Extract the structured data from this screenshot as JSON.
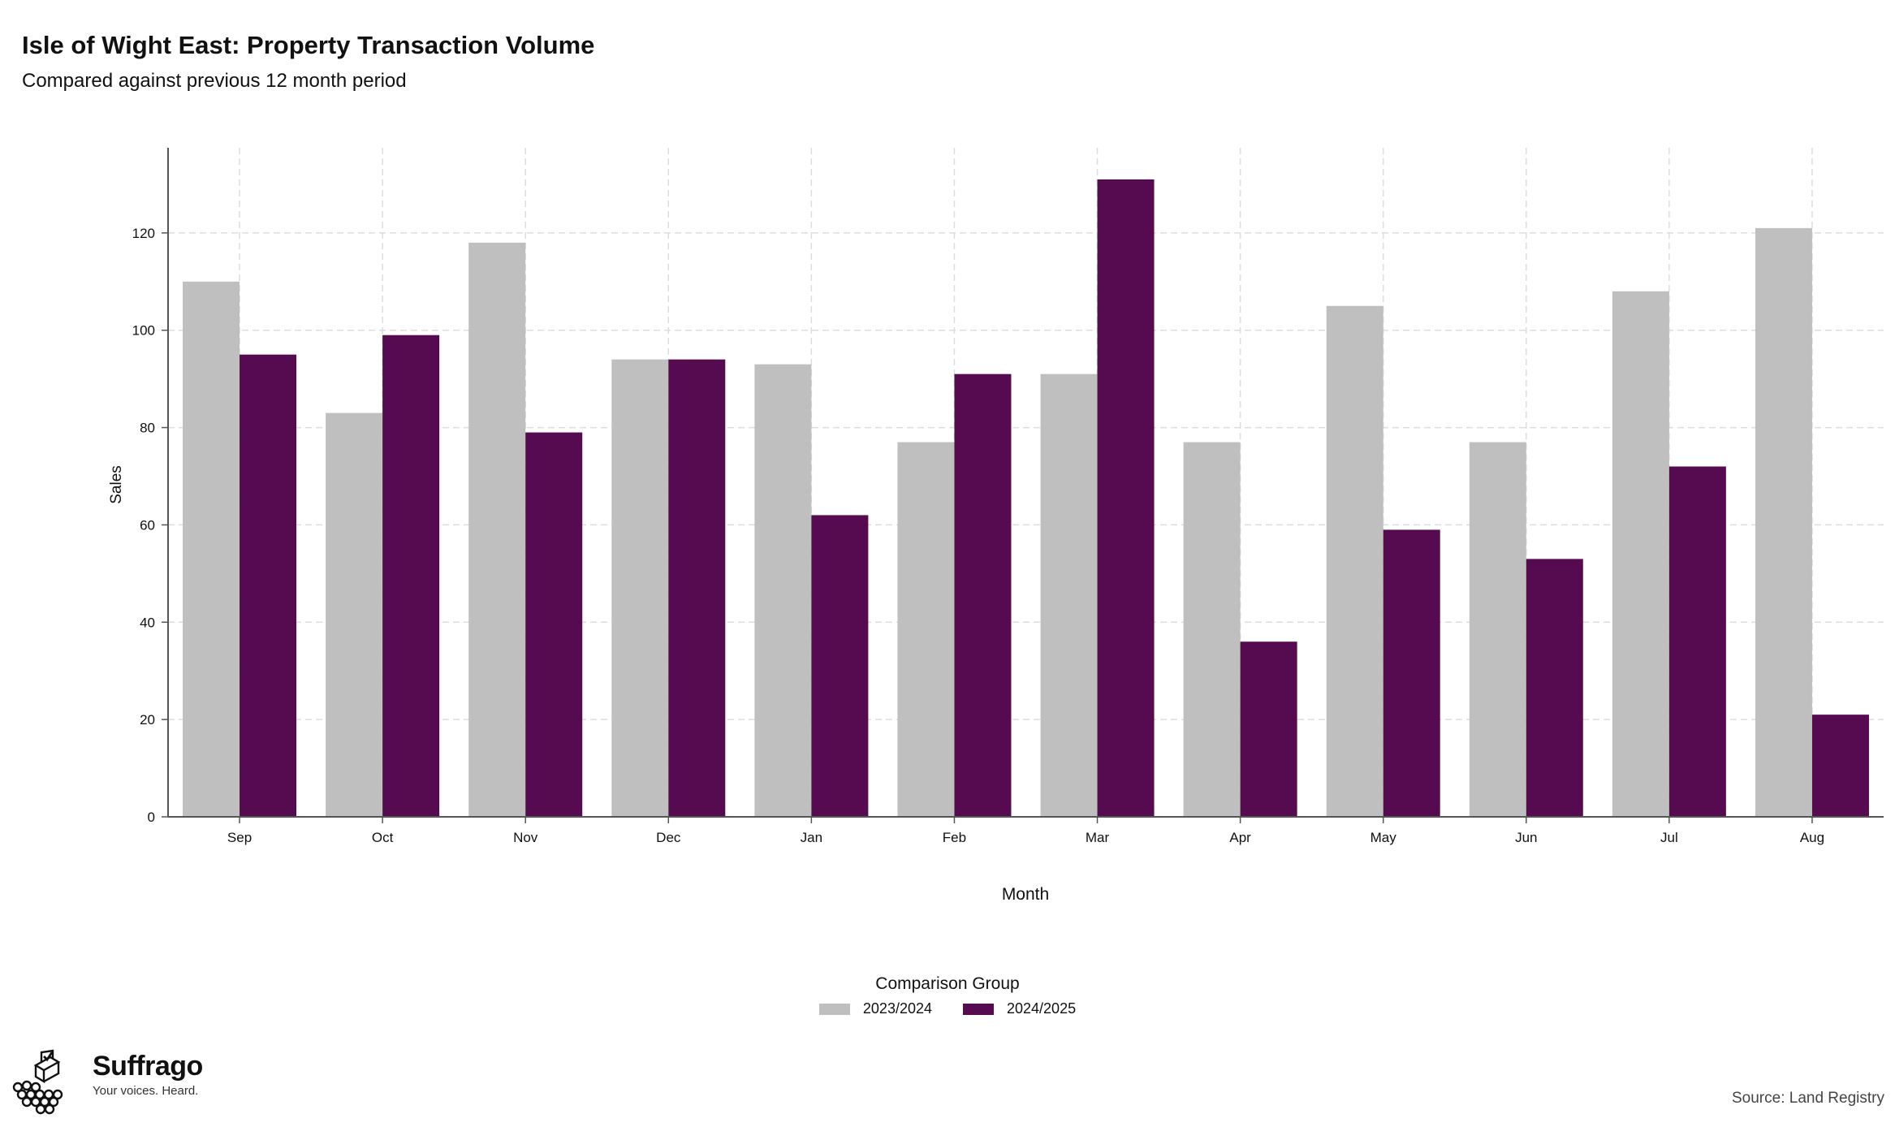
{
  "header": {
    "title": "Isle of Wight East: Property Transaction Volume",
    "subtitle": "Compared against previous 12 month period"
  },
  "chart_data": {
    "type": "bar",
    "categories": [
      "Sep",
      "Oct",
      "Nov",
      "Dec",
      "Jan",
      "Feb",
      "Mar",
      "Apr",
      "May",
      "Jun",
      "Jul",
      "Aug"
    ],
    "series": [
      {
        "name": "2023/2024",
        "color": "#bfbfbf",
        "values": [
          110,
          83,
          118,
          94,
          93,
          77,
          91,
          77,
          105,
          77,
          108,
          121
        ]
      },
      {
        "name": "2024/2025",
        "color": "#560b51",
        "values": [
          95,
          99,
          79,
          94,
          62,
          91,
          131,
          36,
          59,
          53,
          72,
          21
        ]
      }
    ],
    "xlabel": "Month",
    "ylabel": "Sales",
    "ylim": [
      0,
      137.5
    ],
    "yticks": [
      "0",
      "20",
      "40",
      "60",
      "80",
      "100",
      "120"
    ],
    "grid": true,
    "legend_title": "Comparison Group",
    "legend_position": "bottom-center"
  },
  "footer": {
    "brand_name": "Suffrago",
    "brand_tagline": "Your voices. Heard.",
    "source": "Source: Land Registry"
  }
}
